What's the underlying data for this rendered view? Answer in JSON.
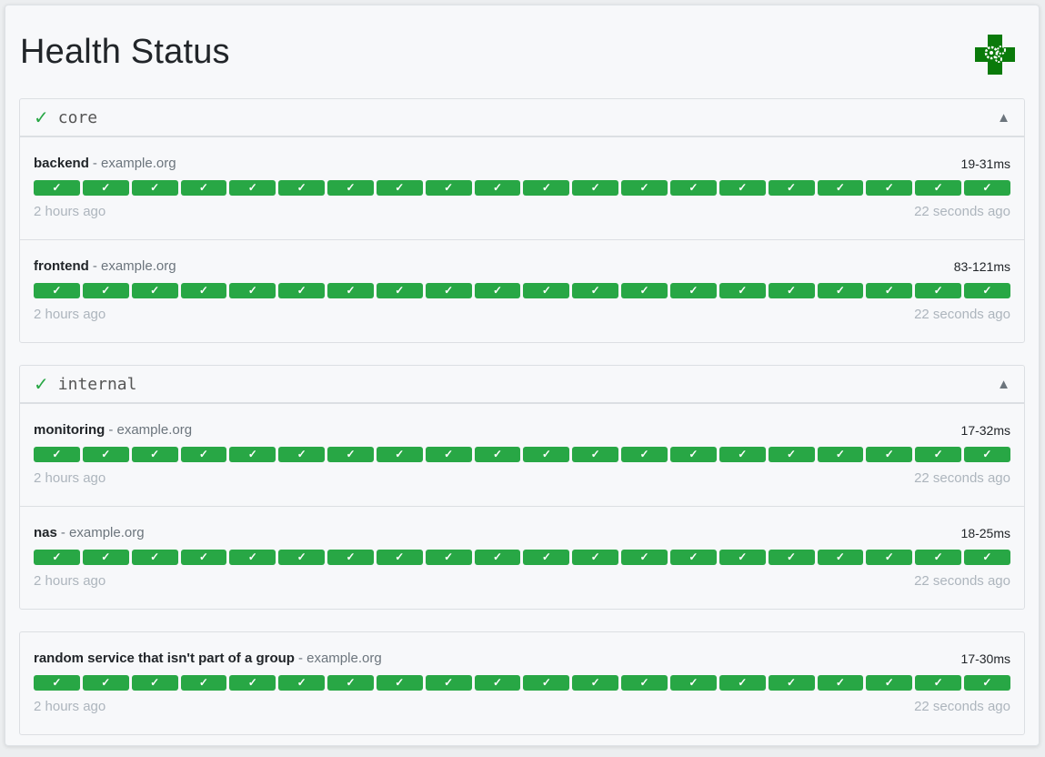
{
  "page": {
    "title": "Health Status",
    "logo_icon": "green-cross-gears-icon",
    "accent": "#28a745"
  },
  "groups": [
    {
      "name": "core",
      "status_icon": "✓",
      "toggle_icon": "▲",
      "services": [
        {
          "name": "backend",
          "host": "- example.org",
          "response_time": "19-31ms",
          "oldest": "2 hours ago",
          "newest": "22 seconds ago",
          "results": [
            1,
            1,
            1,
            1,
            1,
            1,
            1,
            1,
            1,
            1,
            1,
            1,
            1,
            1,
            1,
            1,
            1,
            1,
            1,
            1
          ]
        },
        {
          "name": "frontend",
          "host": "- example.org",
          "response_time": "83-121ms",
          "oldest": "2 hours ago",
          "newest": "22 seconds ago",
          "results": [
            1,
            1,
            1,
            1,
            1,
            1,
            1,
            1,
            1,
            1,
            1,
            1,
            1,
            1,
            1,
            1,
            1,
            1,
            1,
            1
          ]
        }
      ]
    },
    {
      "name": "internal",
      "status_icon": "✓",
      "toggle_icon": "▲",
      "services": [
        {
          "name": "monitoring",
          "host": "- example.org",
          "response_time": "17-32ms",
          "oldest": "2 hours ago",
          "newest": "22 seconds ago",
          "results": [
            1,
            1,
            1,
            1,
            1,
            1,
            1,
            1,
            1,
            1,
            1,
            1,
            1,
            1,
            1,
            1,
            1,
            1,
            1,
            1
          ]
        },
        {
          "name": "nas",
          "host": "- example.org",
          "response_time": "18-25ms",
          "oldest": "2 hours ago",
          "newest": "22 seconds ago",
          "results": [
            1,
            1,
            1,
            1,
            1,
            1,
            1,
            1,
            1,
            1,
            1,
            1,
            1,
            1,
            1,
            1,
            1,
            1,
            1,
            1
          ]
        }
      ]
    },
    {
      "name": "",
      "services": [
        {
          "name": "random service that isn't part of a group",
          "host": "- example.org",
          "response_time": "17-30ms",
          "oldest": "2 hours ago",
          "newest": "22 seconds ago",
          "results": [
            1,
            1,
            1,
            1,
            1,
            1,
            1,
            1,
            1,
            1,
            1,
            1,
            1,
            1,
            1,
            1,
            1,
            1,
            1,
            1
          ]
        }
      ]
    }
  ],
  "bar_success_glyph": "✓",
  "bar_fail_glyph": "✗"
}
